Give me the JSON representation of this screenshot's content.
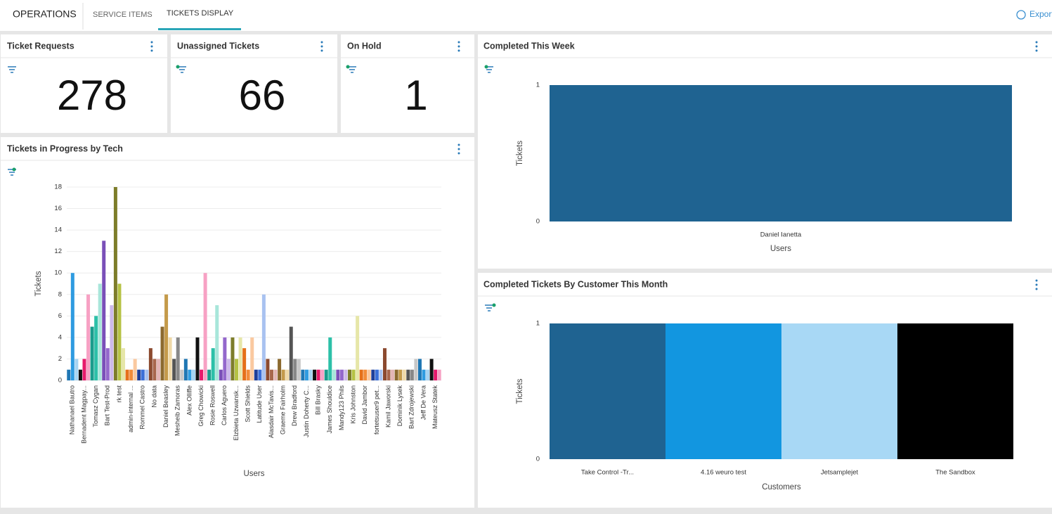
{
  "nav": {
    "title": "OPERATIONS",
    "tabs": [
      "SERVICE ITEMS",
      "TICKETS DISPLAY"
    ],
    "action": "Export"
  },
  "tiles": [
    {
      "title": "Ticket Requests",
      "value": 278
    },
    {
      "title": "Unassigned Tickets",
      "value": 66
    },
    {
      "title": "On Hold",
      "value": 1
    }
  ],
  "chart_data": [
    {
      "type": "bar",
      "title": "Tickets in Progress by Tech",
      "x_label": "Users",
      "y_label": "Tickets",
      "categories": [
        "Nathanael Bautro",
        null,
        null,
        "Bernadent Magpay...",
        null,
        null,
        "Tomasz Cygan",
        null,
        null,
        "Bart Test-Prod",
        null,
        null,
        "rk test",
        null,
        null,
        "admin-internal ...",
        null,
        null,
        "Rommel Castro",
        null,
        null,
        "No data",
        null,
        null,
        "Daniel Beasley",
        null,
        null,
        "Mesheib Zamoras",
        null,
        null,
        "Alex Olliffe",
        null,
        null,
        "Greg Chowicki",
        null,
        null,
        "Rosie Roswell",
        null,
        null,
        "Carlos Aguero",
        null,
        null,
        "Elzbieta Uzwansk...",
        null,
        null,
        "Scott Shields",
        null,
        null,
        "Latitude User",
        null,
        null,
        "Alasdair McTavis...",
        null,
        null,
        "Graeme Fairholm",
        null,
        null,
        "Drew Bradford",
        null,
        null,
        "Justin Doherty C...",
        null,
        null,
        "Bill Brasky",
        null,
        null,
        "James Shouldice",
        null,
        null,
        "Mandy123 Phils",
        null,
        null,
        "Kris Johnston",
        null,
        null,
        "David Jambor",
        null,
        null,
        "fortetsuser9 pet...",
        null,
        null,
        "Kamil Jaworski",
        null,
        null,
        "Dominik Lysek",
        null,
        null,
        "Bart Zdrojewski",
        null,
        null,
        "Jeff De Vera",
        null,
        null,
        "Mateusz Statek",
        null,
        null
      ],
      "values": [
        1,
        10,
        2,
        1,
        2,
        8,
        5,
        6,
        9,
        13,
        3,
        7,
        18,
        9,
        3,
        1,
        1,
        2,
        1,
        1,
        1,
        3,
        2,
        2,
        5,
        8,
        4,
        2,
        4,
        1,
        2,
        1,
        1,
        4,
        1,
        10,
        1,
        3,
        7,
        1,
        4,
        2,
        4,
        2,
        4,
        3,
        1,
        4,
        1,
        1,
        8,
        2,
        1,
        1,
        2,
        1,
        1,
        5,
        2,
        2,
        1,
        1,
        1,
        1,
        1,
        1,
        1,
        4,
        1,
        1,
        1,
        1,
        1,
        1,
        6,
        1,
        1,
        1,
        1,
        1,
        1,
        3,
        1,
        1,
        1,
        1,
        1,
        1,
        1,
        2,
        2,
        1,
        1,
        2,
        1,
        1
      ],
      "palette": [
        "#1f77b4",
        "#2e9be0",
        "#a6d4f2",
        "#111111",
        "#e6196b",
        "#f7a1c4",
        "#1a9c8c",
        "#2cc0a8",
        "#a8e6da",
        "#7a4fb8",
        "#9468cc",
        "#cdb9ea",
        "#7d7d2a",
        "#b5c244",
        "#e6e6a8",
        "#e5701a",
        "#f28c3a",
        "#fac9a0",
        "#1f3f99",
        "#3b6fd8",
        "#a9c2f0",
        "#8c4a2f",
        "#a8664c",
        "#e3b5b5",
        "#8c6a2f",
        "#c49a4a",
        "#efd9a8",
        "#555555",
        "#888888",
        "#c8c8c8"
      ],
      "ylim": [
        0,
        18
      ],
      "yticks": [
        0,
        2,
        4,
        6,
        8,
        10,
        12,
        14,
        16,
        18
      ],
      "grid": true
    },
    {
      "type": "bar",
      "title": "Completed This Week",
      "x_label": "Users",
      "y_label": "Tickets",
      "categories": [
        "Daniel Ianetta"
      ],
      "values": [
        1
      ],
      "color": "#1f6391",
      "ylim": [
        0,
        1
      ],
      "yticks": [
        0,
        1
      ],
      "grid": false
    },
    {
      "type": "bar",
      "title": "Completed Tickets By Customer This Month",
      "x_label": "Customers",
      "y_label": "Tickets",
      "categories": [
        "Take Control -Tr...",
        "4.16 weuro test",
        "Jetsamplejet",
        "The Sandbox"
      ],
      "values": [
        1,
        1,
        1,
        1
      ],
      "colors": [
        "#1f6391",
        "#1296e0",
        "#a8d8f5",
        "#000000"
      ],
      "ylim": [
        0,
        1
      ],
      "yticks": [
        0,
        1
      ],
      "grid": false
    }
  ]
}
